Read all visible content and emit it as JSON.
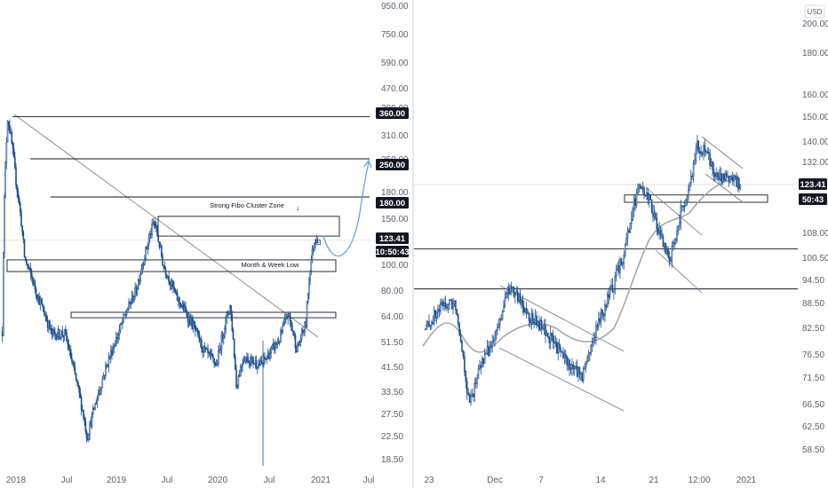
{
  "colors": {
    "up": "#2962ff",
    "down": "#1e3a5f",
    "candle": "#1f4e8c",
    "line": "#131722",
    "box": "#131722",
    "label_bg": "#131722",
    "axis_text": "#5d606b",
    "projection": "#6aa3d8",
    "ma": "#a7a7a7",
    "dotted": "#9598a1"
  },
  "chart_data": [
    {
      "type": "candlestick",
      "panel": "left",
      "scale": "log",
      "ylim": [
        17,
        960
      ],
      "y_ticks": [
        "950.00",
        "750.00",
        "590.00",
        "470.00",
        "390.00",
        "310.00",
        "250.00",
        "180.00",
        "150.00",
        "123.41",
        "100.00",
        "80.00",
        "64.00",
        "51.50",
        "41.50",
        "33.50",
        "27.50",
        "22.50",
        "18.50"
      ],
      "x_ticks": [
        "2018",
        "Jul",
        "2019",
        "Jul",
        "2020",
        "Jul",
        "2021",
        "Jul"
      ],
      "price_labels": [
        {
          "text": "360.00"
        },
        {
          "text": "250.00"
        },
        {
          "text": "180.00"
        },
        {
          "text": "123.41"
        },
        {
          "text": "10:50:43"
        }
      ],
      "horizontal_levels": [
        360,
        250,
        180
      ],
      "annotations": [
        "Strong Fibo Cluster Zone",
        "Month & Week Low"
      ],
      "zones": [
        {
          "name": "Strong Fibo Cluster Zone",
          "low": 128,
          "high": 152
        },
        {
          "name": "Month & Week Low",
          "low": 94,
          "high": 104
        },
        {
          "name": "support-zone",
          "low": 63,
          "high": 66
        }
      ],
      "last_price": 123.41
    },
    {
      "type": "candlestick",
      "panel": "right",
      "scale": "log",
      "ylim": [
        56,
        210
      ],
      "currency": "USD",
      "y_ticks": [
        "200.00",
        "180.00",
        "160.00",
        "150.00",
        "140.00",
        "132.00",
        "123.41",
        "116.00",
        "108.00",
        "100.50",
        "94.50",
        "88.50",
        "82.50",
        "76.50",
        "71.50",
        "66.50",
        "62.50",
        "58.50"
      ],
      "x_ticks": [
        "23",
        "Dec",
        "7",
        "14",
        "21",
        "12:00",
        "2021"
      ],
      "price_labels": [
        {
          "text": "123.41"
        },
        {
          "text": "50:43"
        }
      ],
      "horizontal_levels": [
        103,
        92
      ],
      "zones": [
        {
          "name": "support-zone",
          "low": 116,
          "high": 119
        }
      ],
      "last_price": 123.41
    }
  ]
}
